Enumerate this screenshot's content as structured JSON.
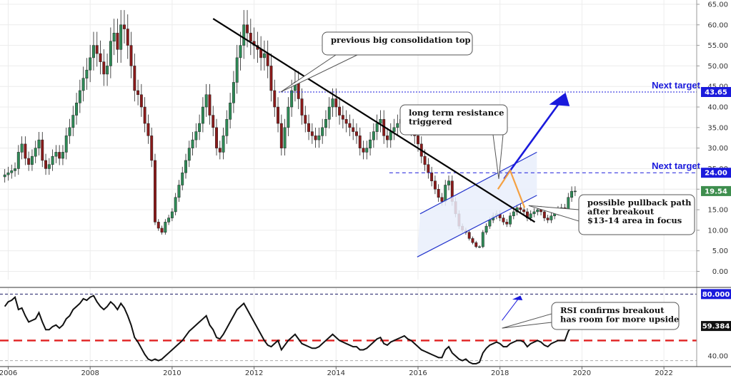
{
  "chart_data": [
    {
      "type": "candlestick",
      "x_ticks": [
        "2006",
        "2008",
        "2010",
        "2012",
        "2014",
        "2016",
        "2018",
        "2020",
        "2022"
      ],
      "y_ticks": [
        "0.00",
        "5.00",
        "10.00",
        "15.00",
        "20.00",
        "25.00",
        "30.00",
        "35.00",
        "40.00",
        "45.00",
        "50.00",
        "55.00",
        "60.00",
        "65.00"
      ],
      "xlim": [
        2005.8,
        2022.8
      ],
      "ylim": [
        -2,
        65
      ],
      "last_price_label": "19.54",
      "last_price": 19.54,
      "monthly_closes": [
        23.5,
        24.0,
        24.5,
        25.0,
        29.0,
        31.0,
        27.5,
        26.0,
        28.0,
        30.0,
        32.0,
        27.0,
        25.0,
        26.0,
        28.0,
        29.0,
        27.5,
        29.0,
        33.0,
        35.0,
        38.0,
        41.0,
        44.0,
        47.0,
        49.0,
        52.0,
        55.0,
        53.0,
        51.0,
        48.0,
        50.0,
        56.0,
        58.0,
        54.0,
        60.0,
        59.0,
        55.0,
        50.0,
        44.0,
        43.0,
        40.0,
        36.0,
        33.0,
        27.0,
        12.0,
        10.5,
        9.5,
        12.0,
        13.0,
        14.5,
        18.0,
        21.0,
        24.0,
        27.0,
        30.0,
        32.0,
        34.0,
        36.0,
        40.0,
        43.0,
        38.0,
        35.0,
        30.0,
        29.0,
        33.0,
        37.0,
        41.0,
        46.0,
        52.0,
        55.0,
        60.0,
        58.0,
        56.0,
        55.0,
        54.0,
        52.0,
        53.0,
        50.0,
        44.0,
        40.0,
        36.0,
        30.0,
        35.0,
        40.0,
        44.0,
        46.0,
        42.0,
        38.0,
        36.0,
        34.0,
        33.0,
        32.0,
        33.0,
        35.0,
        37.0,
        40.0,
        42.0,
        40.0,
        38.0,
        37.0,
        36.0,
        35.0,
        34.0,
        33.0,
        30.0,
        29.0,
        30.0,
        32.0,
        34.0,
        36.0,
        37.0,
        33.0,
        32.0,
        34.0,
        35.0,
        36.0,
        37.0,
        38.0,
        36.0,
        35.0,
        33.0,
        31.0,
        28.0,
        26.0,
        24.0,
        22.0,
        20.0,
        18.0,
        17.0,
        21.0,
        22.0,
        17.0,
        14.0,
        11.0,
        10.0,
        9.5,
        8.0,
        7.0,
        6.0,
        6.0,
        9.5,
        11.0,
        12.5,
        13.5,
        14.0,
        13.0,
        12.0,
        11.5,
        13.5,
        14.5,
        15.5,
        15.0,
        14.5,
        13.0,
        14.0,
        14.5,
        15.0,
        14.5,
        13.0,
        12.5,
        13.5,
        14.5,
        15.0,
        15.5,
        15.0,
        18.0,
        19.5,
        19.54
      ],
      "annotations": [
        "previous big consolidation top",
        "long term resistance triggered",
        "possible pullback path",
        "after breakout",
        "$13-14 area in focus"
      ],
      "levels": [
        {
          "label": "Next target",
          "value": 43.65,
          "tag": "43.65"
        },
        {
          "label": "Next target",
          "value": 24.0,
          "tag": "24.00"
        }
      ],
      "colors": {
        "up": "#2e8b57",
        "down": "#8b1a1a",
        "target": "#1a1adc",
        "trend": "#000000",
        "pullback": "#f5a142",
        "channel": "#2233cc",
        "price_tag": "#3e8e4e"
      }
    },
    {
      "type": "line",
      "name": "RSI",
      "y_ticks": [
        "40.00"
      ],
      "ylim": [
        35,
        82
      ],
      "levels": [
        {
          "value": 80,
          "tag": "80.000"
        },
        {
          "value": 50,
          "color": "#e02020"
        }
      ],
      "last_label": "59.384",
      "last_value": 59.384,
      "values": [
        72,
        75,
        76,
        78,
        70,
        71,
        66,
        62,
        63,
        64,
        68,
        62,
        57,
        57,
        59,
        60,
        58,
        60,
        64,
        66,
        70,
        72,
        74,
        77,
        76,
        78,
        79,
        75,
        72,
        70,
        72,
        75,
        73,
        70,
        74,
        71,
        66,
        60,
        52,
        49,
        45,
        41,
        38,
        37,
        38,
        37,
        38,
        40,
        42,
        44,
        46,
        48,
        50,
        53,
        56,
        58,
        60,
        62,
        64,
        66,
        60,
        57,
        52,
        51,
        54,
        58,
        62,
        66,
        70,
        72,
        74,
        70,
        66,
        62,
        58,
        54,
        50,
        47,
        46,
        48,
        50,
        44,
        47,
        50,
        52,
        54,
        51,
        48,
        47,
        46,
        45,
        45,
        46,
        48,
        50,
        52,
        54,
        52,
        50,
        49,
        48,
        47,
        46,
        46,
        44,
        44,
        45,
        47,
        49,
        51,
        52,
        48,
        47,
        49,
        50,
        51,
        52,
        53,
        51,
        50,
        48,
        46,
        44,
        43,
        42,
        41,
        40,
        39,
        39,
        44,
        46,
        42,
        40,
        38,
        37,
        38,
        36,
        35,
        35,
        36,
        42,
        45,
        47,
        48,
        49,
        48,
        46,
        46,
        48,
        49,
        50,
        50,
        49,
        46,
        48,
        49,
        50,
        49,
        47,
        46,
        48,
        49,
        50,
        50,
        50,
        56,
        59,
        59.384
      ],
      "annotation": [
        "RSI confirms breakout",
        "has room for more upside"
      ]
    }
  ]
}
